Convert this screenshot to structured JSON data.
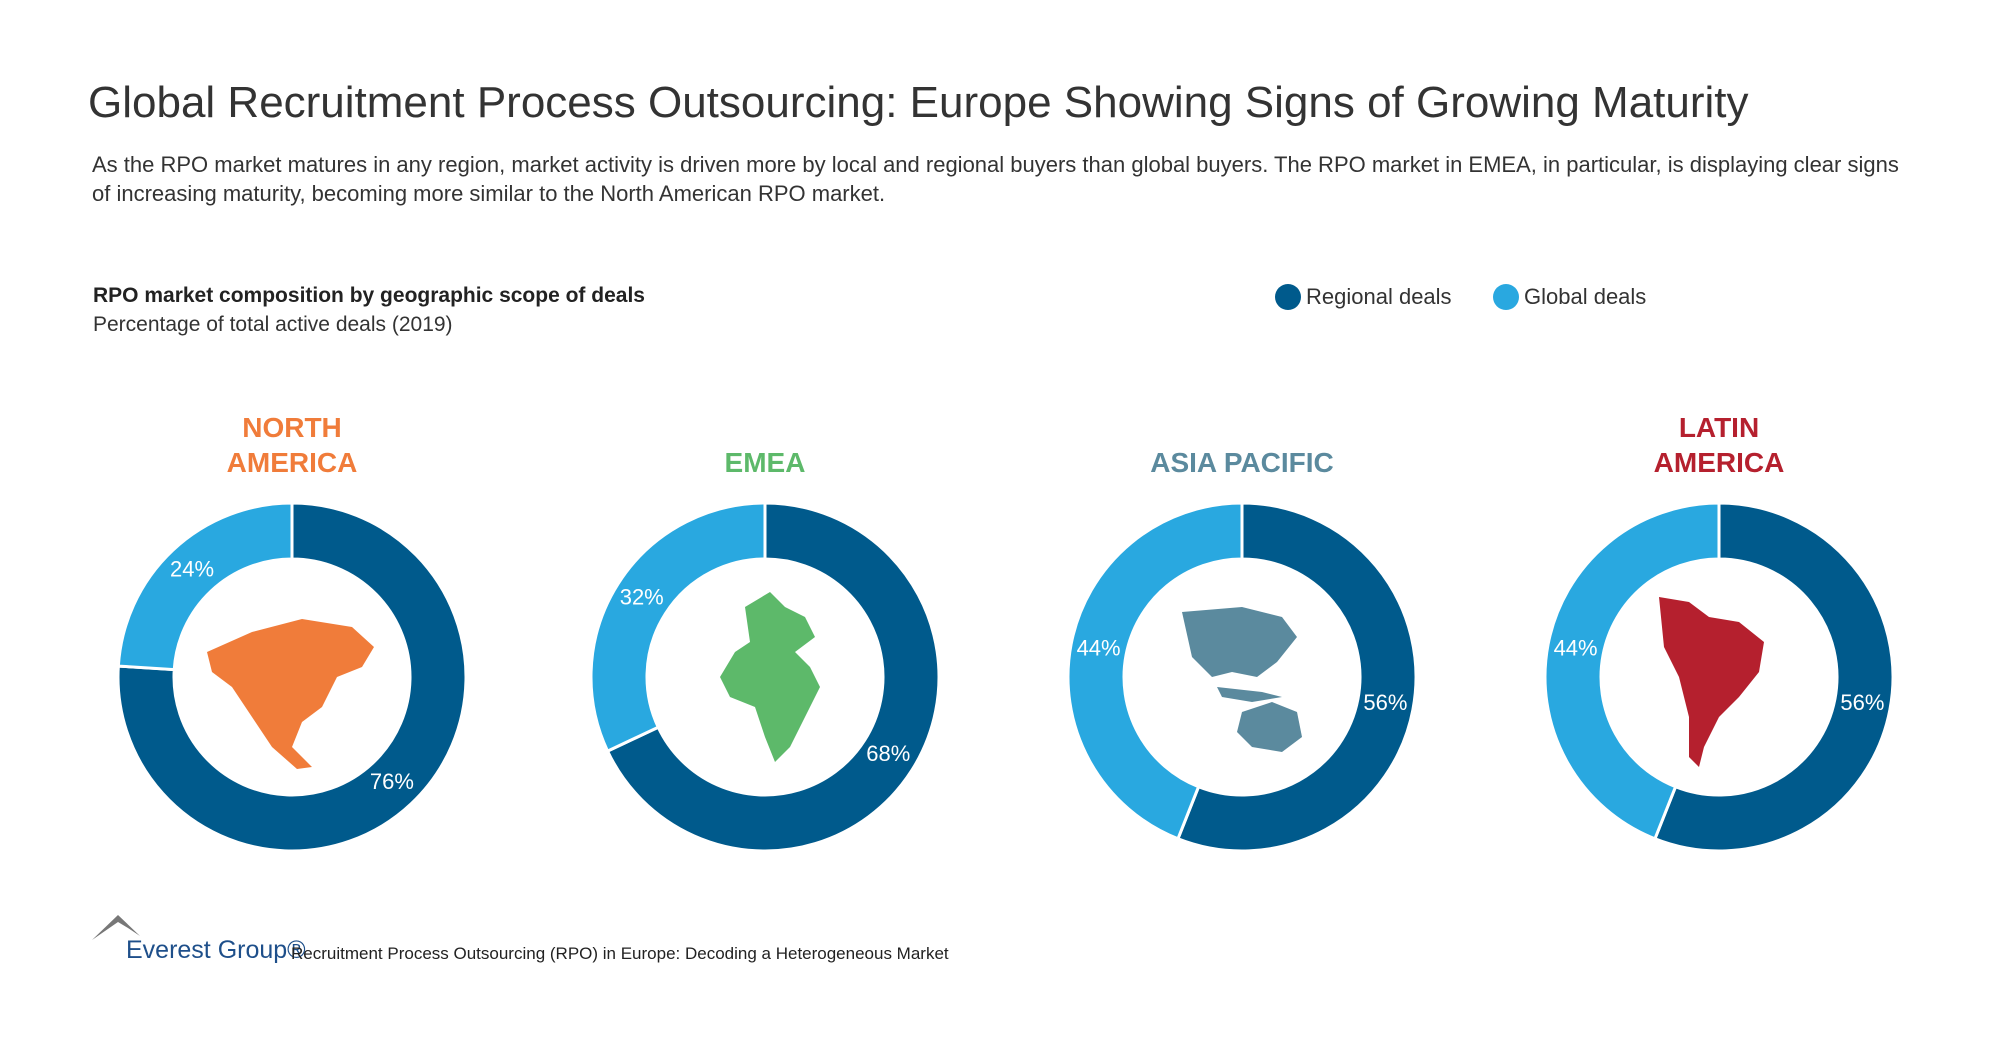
{
  "header": {
    "title": "Global Recruitment Process Outsourcing: Europe Showing Signs of Growing Maturity",
    "subtitle": "As the RPO market matures in any region, market activity is driven more by local and regional buyers than global buyers. The RPO market in EMEA, in particular, is displaying clear signs of increasing maturity, becoming more similar to the North American RPO market."
  },
  "figure": {
    "title": "RPO market composition by geographic scope of deals",
    "subtitle": "Percentage of total active deals (2019)",
    "legend": "top-right"
  },
  "chart_data": [
    {
      "type": "donut",
      "title": "NORTH\nAMERICA",
      "title_color": "#f07c3a",
      "categories": [
        "Regional deals",
        "Global deals"
      ],
      "values": [
        76,
        24
      ],
      "value_labels": [
        "76%",
        "24%"
      ],
      "colors": [
        "#005a8c",
        "#29a8e0"
      ]
    },
    {
      "type": "donut",
      "title": "EMEA",
      "title_color": "#5db96a",
      "categories": [
        "Regional deals",
        "Global deals"
      ],
      "values": [
        68,
        32
      ],
      "value_labels": [
        "68%",
        "32%"
      ],
      "colors": [
        "#005a8c",
        "#29a8e0"
      ]
    },
    {
      "type": "donut",
      "title": "ASIA PACIFIC",
      "title_color": "#5b8a9e",
      "categories": [
        "Regional deals",
        "Global deals"
      ],
      "values": [
        56,
        44
      ],
      "value_labels": [
        "56%",
        "44%"
      ],
      "colors": [
        "#005a8c",
        "#29a8e0"
      ]
    },
    {
      "type": "donut",
      "title": "LATIN\nAMERICA",
      "title_color": "#b5202e",
      "categories": [
        "Regional deals",
        "Global deals"
      ],
      "values": [
        56,
        44
      ],
      "value_labels": [
        "56%",
        "44%"
      ],
      "colors": [
        "#005a8c",
        "#29a8e0"
      ]
    }
  ],
  "footer": {
    "logo": "Everest Group®",
    "source": "Recruitment Process Outsourcing (RPO) in Europe: Decoding a Heterogeneous Market"
  }
}
